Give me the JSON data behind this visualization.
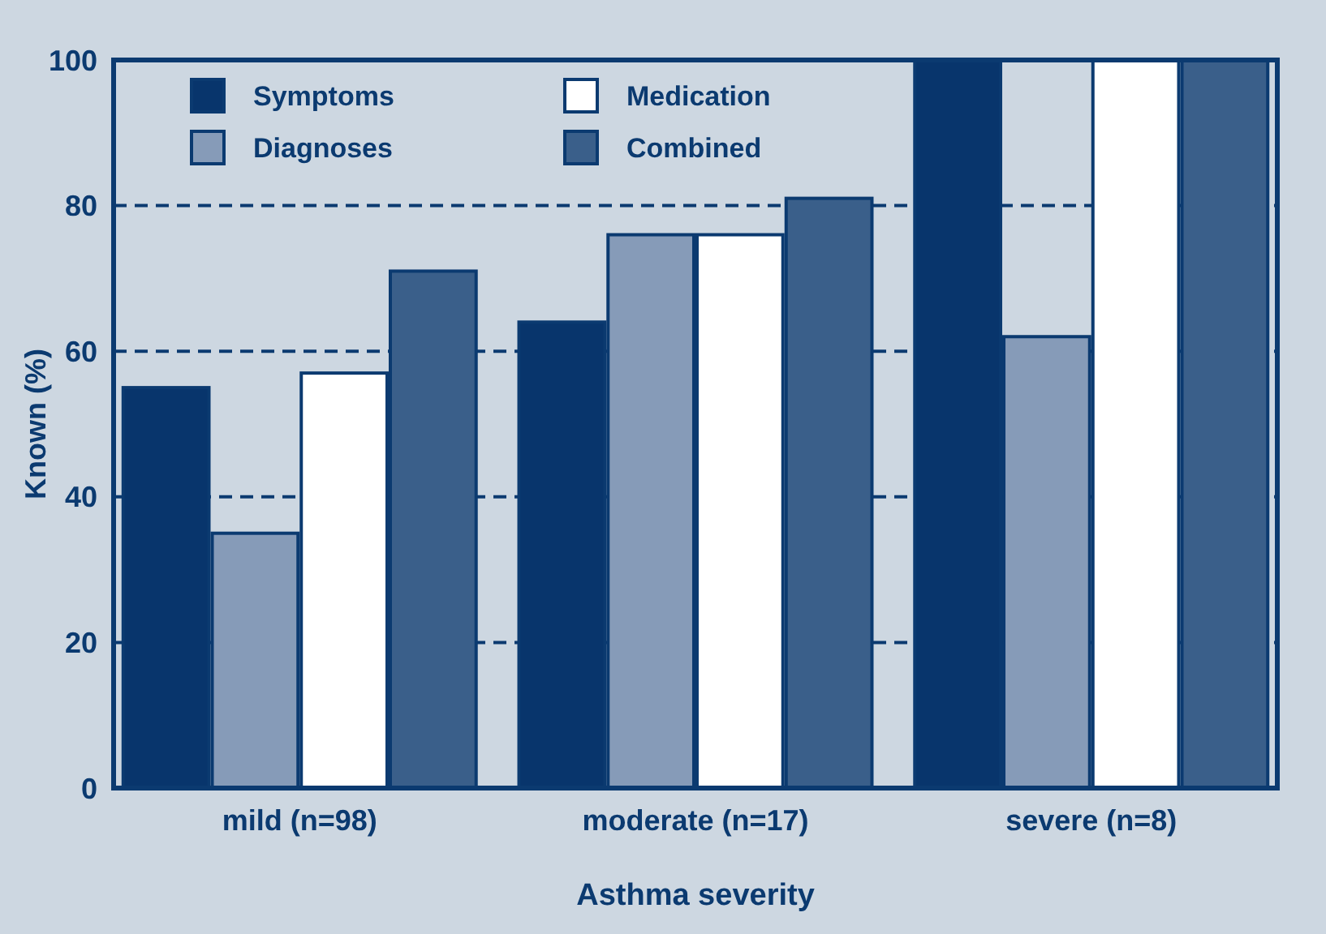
{
  "chart_data": {
    "type": "bar",
    "xlabel": "Asthma severity",
    "ylabel": "Known (%)",
    "categories": [
      "mild (n=98)",
      "moderate (n=17)",
      "severe (n=8)"
    ],
    "series": [
      {
        "name": "Symptoms",
        "color": "#08356c",
        "values": [
          55,
          64,
          100
        ]
      },
      {
        "name": "Diagnoses",
        "color": "#869bb8",
        "values": [
          35,
          76,
          62
        ]
      },
      {
        "name": "Medication",
        "color": "#ffffff",
        "values": [
          57,
          76,
          100
        ]
      },
      {
        "name": "Combined",
        "color": "#3a5f8a",
        "values": [
          71,
          81,
          100
        ]
      }
    ],
    "ylim": [
      0,
      100
    ],
    "yticks": [
      0,
      20,
      40,
      60,
      80,
      100
    ],
    "grid": "y",
    "legend": "top left"
  }
}
